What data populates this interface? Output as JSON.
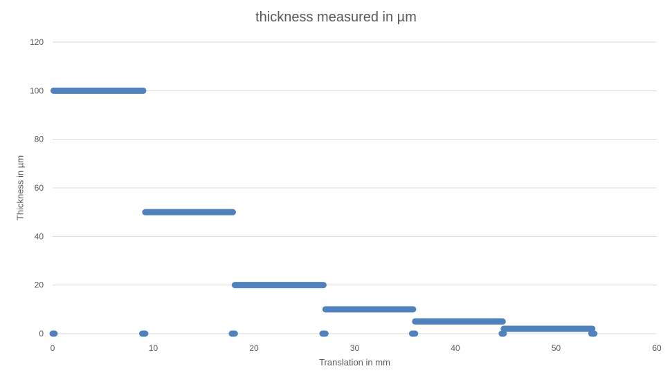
{
  "chart_data": {
    "type": "scatter",
    "title": "thickness measured in µm",
    "xlabel": "Translation in mm",
    "ylabel": "Thickness in µm",
    "xlim": [
      0,
      60
    ],
    "ylim": [
      0,
      120
    ],
    "xticks": [
      0,
      10,
      20,
      30,
      40,
      50,
      60
    ],
    "yticks": [
      0,
      20,
      40,
      60,
      80,
      100,
      120
    ],
    "grid": "horizontal",
    "legend": "none",
    "series_color": "#4F81BD",
    "gridline_color": "#D9D9D9",
    "segments": [
      {
        "x_start": 0.0,
        "x_end": 0.2,
        "y": 0
      },
      {
        "x_start": 0.1,
        "x_end": 9.0,
        "y": 100
      },
      {
        "x_start": 8.9,
        "x_end": 9.2,
        "y": 0
      },
      {
        "x_start": 9.2,
        "x_end": 17.9,
        "y": 50
      },
      {
        "x_start": 17.8,
        "x_end": 18.1,
        "y": 0
      },
      {
        "x_start": 18.1,
        "x_end": 26.9,
        "y": 20
      },
      {
        "x_start": 26.8,
        "x_end": 27.1,
        "y": 0
      },
      {
        "x_start": 27.1,
        "x_end": 35.8,
        "y": 10
      },
      {
        "x_start": 35.7,
        "x_end": 36.0,
        "y": 0
      },
      {
        "x_start": 36.0,
        "x_end": 44.7,
        "y": 5
      },
      {
        "x_start": 44.6,
        "x_end": 44.8,
        "y": 0
      },
      {
        "x_start": 44.8,
        "x_end": 53.6,
        "y": 2
      },
      {
        "x_start": 53.5,
        "x_end": 53.8,
        "y": 0
      }
    ]
  }
}
